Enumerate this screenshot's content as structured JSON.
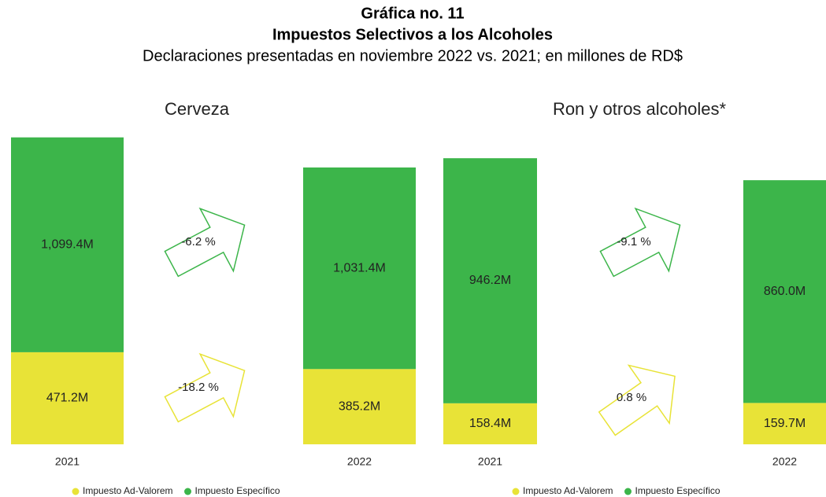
{
  "header": {
    "title": "Gráfica no. 11",
    "subtitle": "Impuestos Selectivos a los Alcoholes",
    "description": "Declaraciones presentadas en noviembre 2022 vs. 2021; en millones de RD$"
  },
  "chart_data": [
    {
      "type": "stacked_bar",
      "title": "Cerveza",
      "categories": [
        "2021",
        "2022"
      ],
      "ylim": [
        0,
        1670
      ],
      "series": [
        {
          "name": "Impuesto Ad-Valorem",
          "color": "#e8e337",
          "values": [
            471.2,
            385.2
          ],
          "value_labels": [
            "471.2M",
            "385.2M"
          ]
        },
        {
          "name": "Impuesto Específico",
          "color": "#3cb54a",
          "values": [
            1099.4,
            1031.4
          ],
          "value_labels": [
            "1,099.4M",
            "1,031.4M"
          ]
        }
      ],
      "annotations": [
        {
          "text": "-6.2 %",
          "color": "#3cb54a"
        },
        {
          "text": "-18.2 %",
          "color": "#e8e337"
        }
      ]
    },
    {
      "type": "stacked_bar",
      "title": "Ron y otros alcoholes*",
      "categories": [
        "2021",
        "2022"
      ],
      "ylim": [
        0,
        1260
      ],
      "series": [
        {
          "name": "Impuesto Ad-Valorem",
          "color": "#e8e337",
          "values": [
            158.4,
            159.7
          ],
          "value_labels": [
            "158.4M",
            "159.7M"
          ]
        },
        {
          "name": "Impuesto Específico",
          "color": "#3cb54a",
          "values": [
            946.2,
            860.0
          ],
          "value_labels": [
            "946.2M",
            "860.0M"
          ]
        }
      ],
      "annotations": [
        {
          "text": "-9.1 %",
          "color": "#3cb54a"
        },
        {
          "text": "0.8 %",
          "color": "#e8e337"
        }
      ]
    }
  ]
}
